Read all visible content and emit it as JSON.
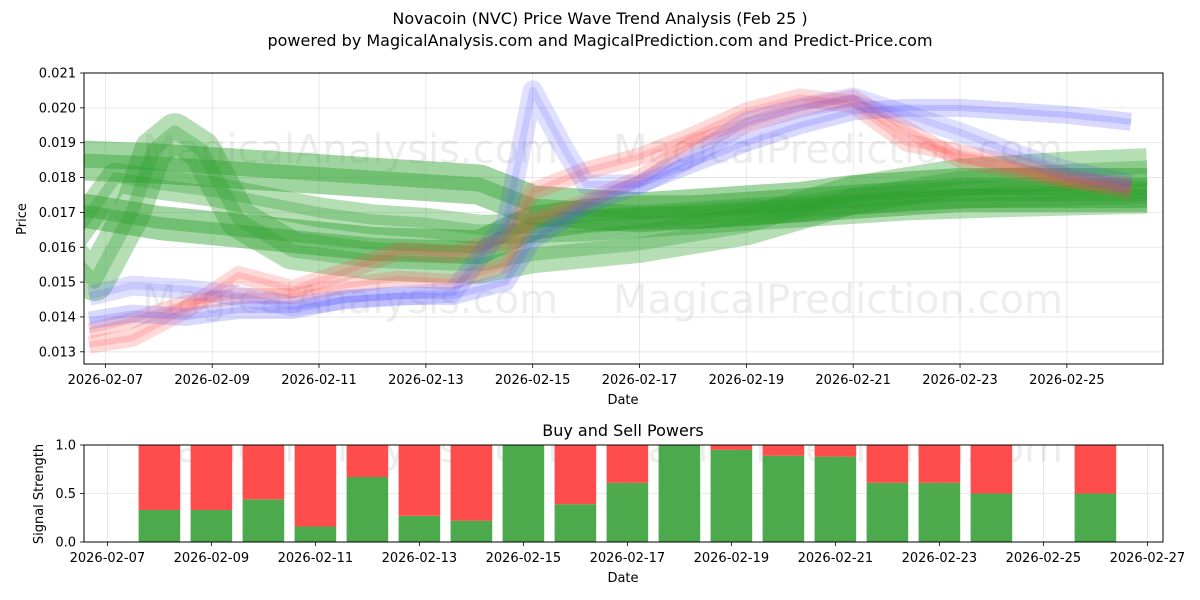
{
  "header": {
    "title": "Novacoin (NVC) Price Wave Trend Analysis (Feb 25 )",
    "subtitle": "powered by MagicalAnalysis.com and MagicalPrediction.com and Predict-Price.com"
  },
  "watermarks": {
    "top_left": "MagicalAnalysis.com",
    "top_right": "MagicalPrediction.com",
    "mid_left": "MagicalAnalysis.com",
    "mid_right": "MagicalPrediction.com",
    "bottom_left": "MagicalAnalysis.com",
    "bottom_right": "MagicalPrediction.com"
  },
  "chart_data": [
    {
      "type": "line",
      "title": "",
      "xlabel": "Date",
      "ylabel": "Price",
      "x_range": [
        "2026-02-06.6",
        "2026-02-26.8"
      ],
      "ylim": [
        0.01265,
        0.021
      ],
      "y_ticks": [
        "0.013",
        "0.014",
        "0.015",
        "0.016",
        "0.017",
        "0.018",
        "0.019",
        "0.020",
        "0.021"
      ],
      "y_tick_values": [
        0.013,
        0.014,
        0.015,
        0.016,
        0.017,
        0.018,
        0.019,
        0.02,
        0.021
      ],
      "x_ticks": [
        "2026-02-07",
        "2026-02-09",
        "2026-02-11",
        "2026-02-13",
        "2026-02-15",
        "2026-02-17",
        "2026-02-19",
        "2026-02-21",
        "2026-02-23",
        "2026-02-25"
      ],
      "x_tick_days": [
        7,
        9,
        11,
        13,
        15,
        17,
        19,
        21,
        23,
        25
      ],
      "grid": true,
      "series": [
        {
          "name": "green-wave-1",
          "color": "#2ca02c",
          "x": [
            6.4,
            7.2,
            8,
            9,
            10,
            11,
            12,
            13,
            14,
            16,
            18,
            20,
            22,
            24,
            26.5
          ],
          "y": [
            0.0163,
            0.018,
            0.0178,
            0.0176,
            0.0173,
            0.017,
            0.0168,
            0.0167,
            0.0165,
            0.0166,
            0.0168,
            0.017,
            0.0172,
            0.0173,
            0.0174
          ]
        },
        {
          "name": "green-wave-2",
          "color": "#2ca02c",
          "x": [
            6.3,
            6.8,
            7.5,
            7.9,
            8.3,
            8.8,
            9.5,
            10.5,
            12,
            14,
            15,
            17,
            19,
            21,
            23,
            25,
            26.5
          ],
          "y": [
            0.0158,
            0.015,
            0.017,
            0.0188,
            0.0193,
            0.0188,
            0.0168,
            0.0159,
            0.0156,
            0.0155,
            0.0158,
            0.0161,
            0.0166,
            0.0175,
            0.018,
            0.0182,
            0.0183
          ]
        },
        {
          "name": "green-wave-3",
          "color": "#2ca02c",
          "x": [
            6.4,
            8,
            10,
            12,
            14,
            15,
            16,
            17,
            18,
            19,
            20,
            21,
            22,
            23,
            24,
            25,
            26.5
          ],
          "y": [
            0.0185,
            0.0184,
            0.0182,
            0.018,
            0.0178,
            0.0172,
            0.0171,
            0.017,
            0.0171,
            0.0172,
            0.0173,
            0.0175,
            0.0176,
            0.0177,
            0.0177,
            0.0177,
            0.0177
          ]
        },
        {
          "name": "green-wave-4",
          "color": "#2ca02c",
          "x": [
            6.4,
            8,
            10,
            12,
            14,
            15,
            16,
            17,
            18,
            19,
            20,
            21,
            22,
            23,
            24,
            25,
            26.5
          ],
          "y": [
            0.0171,
            0.0167,
            0.0164,
            0.0161,
            0.016,
            0.0167,
            0.0169,
            0.017,
            0.017,
            0.0171,
            0.0172,
            0.0173,
            0.0174,
            0.0175,
            0.0175,
            0.0175,
            0.0175
          ]
        },
        {
          "name": "red-wave-1",
          "color": "#ff4c4c",
          "x": [
            6.7,
            7.5,
            8.5,
            9.5,
            10.5,
            11.5,
            12.5,
            13.5,
            14.5,
            15,
            16,
            17,
            18,
            19,
            20,
            21,
            22,
            23,
            24,
            25,
            26.2
          ],
          "y": [
            0.0132,
            0.0134,
            0.0142,
            0.0152,
            0.0148,
            0.0153,
            0.0159,
            0.0158,
            0.0162,
            0.0176,
            0.0182,
            0.0186,
            0.0192,
            0.0199,
            0.0203,
            0.0201,
            0.019,
            0.0187,
            0.0184,
            0.018,
            0.0176
          ]
        },
        {
          "name": "red-wave-2",
          "color": "#ff4c4c",
          "x": [
            6.7,
            7.5,
            8.5,
            9.5,
            10.5,
            11.5,
            12.5,
            13.5,
            14.5,
            15,
            16,
            17,
            18,
            19,
            20,
            21,
            22,
            23,
            24,
            25,
            26.2
          ],
          "y": [
            0.0136,
            0.0139,
            0.0144,
            0.0146,
            0.0146,
            0.0149,
            0.0151,
            0.015,
            0.0155,
            0.0168,
            0.0173,
            0.018,
            0.019,
            0.0195,
            0.02,
            0.0203,
            0.0194,
            0.0185,
            0.0182,
            0.0179,
            0.0178
          ]
        },
        {
          "name": "blue-wave-1",
          "color": "#5050ff",
          "x": [
            6.7,
            7.5,
            8.5,
            9.5,
            10.5,
            11.5,
            12.5,
            13.5,
            14.5,
            15,
            16,
            17,
            18,
            19,
            20,
            21,
            22,
            23,
            24,
            25,
            26.2
          ],
          "y": [
            0.0139,
            0.0141,
            0.014,
            0.0142,
            0.0142,
            0.0145,
            0.0146,
            0.0146,
            0.015,
            0.0162,
            0.0172,
            0.0178,
            0.0184,
            0.019,
            0.0195,
            0.0199,
            0.02,
            0.02,
            0.0199,
            0.0198,
            0.0196
          ]
        },
        {
          "name": "blue-wave-2",
          "color": "#5050ff",
          "x": [
            6.7,
            7.5,
            8.5,
            9.5,
            10.5,
            11.5,
            12.5,
            13.5,
            14.5,
            15,
            15.6,
            16,
            17,
            18,
            19,
            20,
            21,
            22,
            23,
            24,
            25,
            26.2
          ],
          "y": [
            0.0146,
            0.0149,
            0.0148,
            0.0146,
            0.0143,
            0.0145,
            0.0146,
            0.0147,
            0.0167,
            0.0205,
            0.0188,
            0.0178,
            0.0178,
            0.0186,
            0.0196,
            0.02,
            0.0203,
            0.0198,
            0.0193,
            0.0187,
            0.0182,
            0.0178
          ]
        }
      ]
    },
    {
      "type": "bar",
      "title": "Buy and Sell Powers",
      "xlabel": "Date",
      "ylabel": "Signal Strength",
      "x_range": [
        "2026-02-06.5",
        "2026-02-27.5"
      ],
      "ylim": [
        0,
        1.0
      ],
      "y_ticks": [
        "0.0",
        "0.5",
        "1.0"
      ],
      "y_tick_values": [
        0,
        0.5,
        1.0
      ],
      "x_ticks": [
        "2026-02-07",
        "2026-02-09",
        "2026-02-11",
        "2026-02-13",
        "2026-02-15",
        "2026-02-17",
        "2026-02-19",
        "2026-02-21",
        "2026-02-23",
        "2026-02-25",
        "2026-02-27"
      ],
      "x_tick_days": [
        7,
        9,
        11,
        13,
        15,
        17,
        19,
        21,
        23,
        25,
        27
      ],
      "grid": true,
      "categories": [
        "2026-02-08",
        "2026-02-09",
        "2026-02-10",
        "2026-02-11",
        "2026-02-12",
        "2026-02-13",
        "2026-02-14",
        "2026-02-15",
        "2026-02-16",
        "2026-02-17",
        "2026-02-18",
        "2026-02-19",
        "2026-02-20",
        "2026-02-21",
        "2026-02-22",
        "2026-02-23",
        "2026-02-24",
        "2026-02-26"
      ],
      "category_days": [
        8,
        9,
        10,
        11,
        12,
        13,
        14,
        15,
        16,
        17,
        18,
        19,
        20,
        21,
        22,
        23,
        24,
        26
      ],
      "series": [
        {
          "name": "Buy",
          "color": "#4caa4c",
          "values": [
            0.33,
            0.33,
            0.44,
            0.16,
            0.67,
            0.27,
            0.22,
            1.0,
            0.39,
            0.61,
            1.0,
            0.95,
            0.89,
            0.88,
            0.61,
            0.61,
            0.5,
            0.5
          ]
        },
        {
          "name": "Sell",
          "color": "#ff4c4c",
          "values": [
            0.67,
            0.67,
            0.56,
            0.84,
            0.33,
            0.73,
            0.78,
            0.0,
            0.61,
            0.39,
            0.0,
            0.05,
            0.11,
            0.12,
            0.39,
            0.39,
            0.5,
            0.5
          ]
        }
      ]
    }
  ]
}
